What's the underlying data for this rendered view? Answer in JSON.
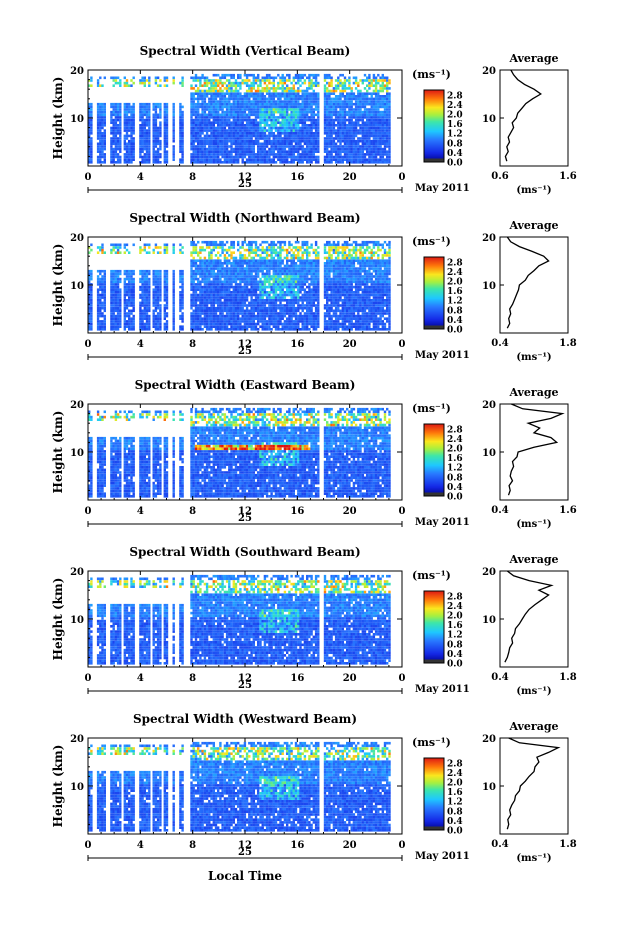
{
  "figure": {
    "ylabel": "Height (km)",
    "xlabel": "Local Time",
    "date_label": "May 2011",
    "day_label": "25",
    "avg_title": "Average",
    "cbar_unit": "(ms⁻¹)",
    "avg_xunit": "(ms⁻¹)"
  },
  "chart_data": [
    {
      "type": "heatmap",
      "title": "Spectral Width (Vertical Beam)",
      "xticks": [
        "0",
        "4",
        "8",
        "12",
        "16",
        "20",
        "0"
      ],
      "yticks": [
        "20",
        "10"
      ],
      "ylim": [
        0,
        20
      ],
      "xlim": [
        0,
        24
      ],
      "colorbar": {
        "ticks": [
          "2.8",
          "2.4",
          "2.0",
          "1.6",
          "1.2",
          "0.8",
          "0.4",
          "0.0"
        ],
        "range": [
          0,
          3.0
        ]
      },
      "average": {
        "xticks": [
          "0.6",
          "1.6"
        ],
        "xlim": [
          0.6,
          1.6
        ],
        "yticks": [
          "20",
          "10"
        ],
        "profile": [
          [
            0.7,
            1
          ],
          [
            0.68,
            2
          ],
          [
            0.72,
            3
          ],
          [
            0.7,
            4
          ],
          [
            0.74,
            5
          ],
          [
            0.72,
            6
          ],
          [
            0.76,
            7
          ],
          [
            0.8,
            8
          ],
          [
            0.78,
            9
          ],
          [
            0.84,
            10
          ],
          [
            0.86,
            11
          ],
          [
            0.92,
            12
          ],
          [
            0.98,
            13
          ],
          [
            1.08,
            14
          ],
          [
            1.2,
            15
          ],
          [
            1.1,
            16
          ],
          [
            0.96,
            17
          ],
          [
            0.86,
            18
          ],
          [
            0.8,
            19
          ],
          [
            0.76,
            20
          ]
        ]
      }
    },
    {
      "type": "heatmap",
      "title": "Spectral Width (Northward Beam)",
      "xticks": [
        "0",
        "4",
        "8",
        "12",
        "16",
        "20",
        "0"
      ],
      "yticks": [
        "20",
        "10"
      ],
      "ylim": [
        0,
        20
      ],
      "xlim": [
        0,
        24
      ],
      "colorbar": {
        "ticks": [
          "2.8",
          "2.4",
          "2.0",
          "1.6",
          "1.2",
          "0.8",
          "0.4",
          "0.0"
        ],
        "range": [
          0,
          3.0
        ]
      },
      "average": {
        "xticks": [
          "0.4",
          "1.8"
        ],
        "xlim": [
          0.4,
          1.8
        ],
        "yticks": [
          "20",
          "10"
        ],
        "profile": [
          [
            0.55,
            1
          ],
          [
            0.6,
            2
          ],
          [
            0.58,
            3
          ],
          [
            0.62,
            4
          ],
          [
            0.6,
            5
          ],
          [
            0.66,
            6
          ],
          [
            0.7,
            7
          ],
          [
            0.74,
            8
          ],
          [
            0.78,
            9
          ],
          [
            0.8,
            10
          ],
          [
            0.92,
            11
          ],
          [
            0.98,
            12
          ],
          [
            1.1,
            13
          ],
          [
            1.2,
            14
          ],
          [
            1.4,
            15
          ],
          [
            1.3,
            16
          ],
          [
            1.06,
            17
          ],
          [
            0.8,
            18
          ],
          [
            0.62,
            19
          ],
          [
            0.55,
            20
          ]
        ]
      }
    },
    {
      "type": "heatmap",
      "title": "Spectral Width (Eastward Beam)",
      "xticks": [
        "0",
        "4",
        "8",
        "12",
        "16",
        "20",
        "0"
      ],
      "yticks": [
        "20",
        "10"
      ],
      "ylim": [
        0,
        20
      ],
      "xlim": [
        0,
        24
      ],
      "colorbar": {
        "ticks": [
          "2.8",
          "2.4",
          "2.0",
          "1.6",
          "1.2",
          "0.8",
          "0.4",
          "0.0"
        ],
        "range": [
          0,
          3.0
        ]
      },
      "average": {
        "xticks": [
          "0.4",
          "1.6"
        ],
        "xlim": [
          0.4,
          1.6
        ],
        "yticks": [
          "20",
          "10"
        ],
        "profile": [
          [
            0.55,
            1
          ],
          [
            0.58,
            2
          ],
          [
            0.56,
            3
          ],
          [
            0.62,
            4
          ],
          [
            0.58,
            5
          ],
          [
            0.6,
            6
          ],
          [
            0.64,
            7
          ],
          [
            0.62,
            8
          ],
          [
            0.7,
            9
          ],
          [
            0.72,
            10
          ],
          [
            1.0,
            11
          ],
          [
            1.4,
            12
          ],
          [
            1.3,
            13
          ],
          [
            1.0,
            14
          ],
          [
            1.1,
            15
          ],
          [
            0.9,
            16
          ],
          [
            1.3,
            17
          ],
          [
            1.5,
            18
          ],
          [
            0.8,
            19
          ],
          [
            0.6,
            20
          ]
        ]
      }
    },
    {
      "type": "heatmap",
      "title": "Spectral Width (Southward Beam)",
      "xticks": [
        "0",
        "4",
        "8",
        "12",
        "16",
        "20",
        "0"
      ],
      "yticks": [
        "20",
        "10"
      ],
      "ylim": [
        0,
        20
      ],
      "xlim": [
        0,
        24
      ],
      "colorbar": {
        "ticks": [
          "2.8",
          "2.4",
          "2.0",
          "1.6",
          "1.2",
          "0.8",
          "0.4",
          "0.0"
        ],
        "range": [
          0,
          3.0
        ]
      },
      "average": {
        "xticks": [
          "0.4",
          "1.8"
        ],
        "xlim": [
          0.4,
          1.8
        ],
        "yticks": [
          "20",
          "10"
        ],
        "profile": [
          [
            0.5,
            1
          ],
          [
            0.55,
            2
          ],
          [
            0.58,
            3
          ],
          [
            0.6,
            4
          ],
          [
            0.66,
            5
          ],
          [
            0.64,
            6
          ],
          [
            0.7,
            7
          ],
          [
            0.72,
            8
          ],
          [
            0.8,
            9
          ],
          [
            0.86,
            10
          ],
          [
            0.92,
            11
          ],
          [
            1.0,
            12
          ],
          [
            1.12,
            13
          ],
          [
            1.26,
            14
          ],
          [
            1.4,
            15
          ],
          [
            1.2,
            16
          ],
          [
            1.46,
            17
          ],
          [
            1.0,
            18
          ],
          [
            0.68,
            19
          ],
          [
            0.55,
            20
          ]
        ]
      }
    },
    {
      "type": "heatmap",
      "title": "Spectral Width (Westward Beam)",
      "xticks": [
        "0",
        "4",
        "8",
        "12",
        "16",
        "20",
        "0"
      ],
      "yticks": [
        "20",
        "10"
      ],
      "ylim": [
        0,
        20
      ],
      "xlim": [
        0,
        24
      ],
      "colorbar": {
        "ticks": [
          "2.8",
          "2.4",
          "2.0",
          "1.6",
          "1.2",
          "0.8",
          "0.4",
          "0.0"
        ],
        "range": [
          0,
          3.0
        ]
      },
      "average": {
        "xticks": [
          "0.4",
          "1.8"
        ],
        "xlim": [
          0.4,
          1.8
        ],
        "yticks": [
          "20",
          "10"
        ],
        "profile": [
          [
            0.55,
            1
          ],
          [
            0.58,
            2
          ],
          [
            0.56,
            3
          ],
          [
            0.62,
            4
          ],
          [
            0.6,
            5
          ],
          [
            0.64,
            6
          ],
          [
            0.7,
            7
          ],
          [
            0.72,
            8
          ],
          [
            0.8,
            9
          ],
          [
            0.82,
            10
          ],
          [
            0.92,
            11
          ],
          [
            1.0,
            12
          ],
          [
            1.1,
            13
          ],
          [
            1.12,
            14
          ],
          [
            1.2,
            15
          ],
          [
            1.16,
            16
          ],
          [
            1.4,
            17
          ],
          [
            1.6,
            18
          ],
          [
            0.8,
            19
          ],
          [
            0.58,
            20
          ]
        ]
      }
    }
  ]
}
